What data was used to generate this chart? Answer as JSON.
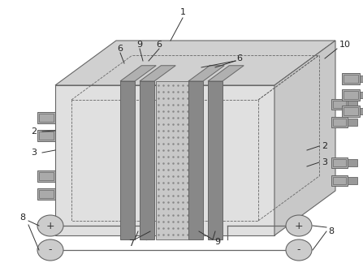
{
  "bg_color": "#ffffff",
  "line_color": "#666666",
  "plate_dark": "#888888",
  "plate_light": "#b0b0b0",
  "plate_mid": "#999999",
  "box_face": "#e0e0e0",
  "box_top": "#d0d0d0",
  "box_right": "#c8c8c8",
  "conn_face": "#b0b0b0",
  "elec_face": "#cccccc",
  "dot_face": "#d8d8d8",
  "label_fs": 8,
  "lw": 0.8
}
